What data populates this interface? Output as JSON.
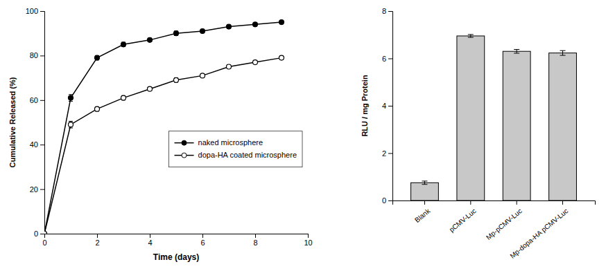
{
  "chart_data": [
    {
      "type": "line",
      "x": [
        0,
        1,
        2,
        3,
        4,
        5,
        6,
        7,
        8,
        9
      ],
      "series": [
        {
          "name": "naked microsphere",
          "color": "black",
          "marker": "circle",
          "line_style": "solid",
          "values": [
            0,
            61,
            79,
            85,
            87,
            90,
            91,
            93,
            94,
            95
          ],
          "errors": [
            0,
            1.5,
            1.0,
            1.0,
            0.8,
            1.0,
            0.8,
            0.8,
            0.8,
            0.8
          ]
        },
        {
          "name": "dopa-HA coated microsphere",
          "color": "black",
          "marker": "open-circle",
          "line_style": "solid",
          "values": [
            0,
            49,
            56,
            61,
            65,
            69,
            71,
            75,
            77,
            79
          ],
          "errors": [
            0,
            1.5,
            1.0,
            1.0,
            0.8,
            1.0,
            0.8,
            0.8,
            0.8,
            0.8
          ]
        }
      ],
      "xlabel": "Time (days)",
      "ylabel": "Cumulative Released (%)",
      "xlim": [
        0,
        10
      ],
      "ylim": [
        0,
        100
      ],
      "xticks": [
        0,
        2,
        4,
        6,
        8,
        10
      ],
      "yticks": [
        0,
        20,
        40,
        60,
        80,
        100
      ],
      "legend": "right"
    },
    {
      "type": "bar",
      "categories": [
        "Blank",
        "pCMV-Luc",
        "Mp-pCMV-Luc",
        "Mp-dopa-HA pCMV-Luc"
      ],
      "values": [
        0.75,
        6.95,
        6.3,
        6.23
      ],
      "errors": [
        0.07,
        0.06,
        0.08,
        0.1
      ],
      "color": "#c8c8c8",
      "ylabel": "RLU / mg Protein",
      "ylim": [
        0,
        8
      ],
      "yticks": [
        0,
        2,
        4,
        6,
        8
      ]
    }
  ]
}
